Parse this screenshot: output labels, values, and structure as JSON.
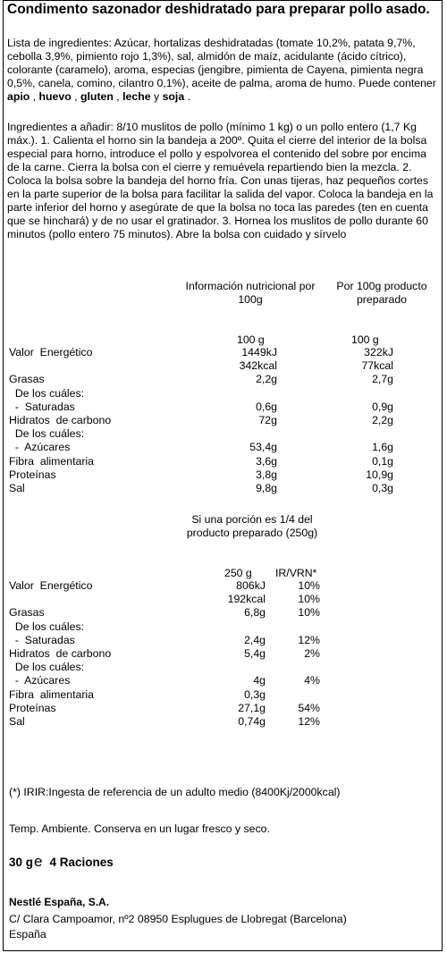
{
  "title": "Condimento sazonador deshidratado para preparar pollo asado.",
  "ingredients": {
    "text": "Lista de ingredientes: Azúcar, hortalizas deshidratadas (tomate 10,2%, patata 9,7%, cebolla 3,9%, pimiento rojo 1,3%), sal, almidón de maíz, acidulante (ácido cítrico), colorante (caramelo), aroma, especias (jengibre, pimienta de Cayena, pimienta negra 0,5%, canela, comino, cilantro 0,1%), aceite de palma, aroma de humo. Puede contener ",
    "allergens": [
      "apio",
      "huevo",
      "gluten",
      "leche",
      "soja"
    ],
    "sep1": " , ",
    "sep2": " , ",
    "sep3": " , ",
    "sep4": " y ",
    "end": " ."
  },
  "instructions": "Ingredientes a añadir: 8/10 muslitos de pollo (mínimo 1 kg) o un pollo entero (1,7 Kg máx.). 1. Calienta el horno sin la bandeja a 200º. Quita el cierre del interior de la bolsa especial para horno, introduce el pollo y espolvorea el contenido del sobre por encima de la carne. Cierra la bolsa con el cierre y remuévela repartiendo bien la mezcla. 2. Coloca la bolsa sobre la bandeja del horno fría. Con unas tijeras, haz pequeños cortes en la parte superior de la bolsa para facilitar la salida del vapor. Coloca la bandeja en la parte inferior del horno y asegúrate de que la bolsa no toca las paredes (ten en cuenta que se hinchará) y de no usar el gratinador. 3. Hornea los muslitos de pollo durante 60 minutos (pollo entero 75 minutos). Abre la bolsa con cuidado y sírvelo",
  "table1": {
    "header_per100": "Información nutricional por 100g",
    "header_prepared": "Por 100g producto preparado",
    "unit_per100": "100 g",
    "unit_prepared": "100 g",
    "rows": [
      {
        "label": "Valor  Energético",
        "a": "1449kJ",
        "b": "322kJ"
      },
      {
        "label": "",
        "a": "342kcal",
        "b": "77kcal"
      },
      {
        "label": "Grasas",
        "a": "2,2g",
        "b": "2,7g"
      },
      {
        "label": "  De los cuáles:",
        "a": "",
        "b": ""
      },
      {
        "label": "  -  Saturadas",
        "a": "0,6g",
        "b": "0,9g"
      },
      {
        "label": "Hidratos  de carbono",
        "a": "72g",
        "b": "2,2g"
      },
      {
        "label": "  De los cuáles:",
        "a": "",
        "b": ""
      },
      {
        "label": "  -  Azúcares",
        "a": "53,4g",
        "b": "1,6g"
      },
      {
        "label": "Fibra  alimentaria",
        "a": "3,6g",
        "b": "0,1g"
      },
      {
        "label": "Proteínas",
        "a": "3,8g",
        "b": "10,9g"
      },
      {
        "label": "Sal",
        "a": "9,8g",
        "b": "0,3g"
      }
    ]
  },
  "table2": {
    "header": "Si una porción es 1/4 del producto preparado (250g)",
    "unit_portion": "250 g",
    "unit_ir": "IR/VRN*",
    "rows": [
      {
        "label": "Valor  Energético",
        "a": "806kJ",
        "b": "10%"
      },
      {
        "label": "",
        "a": "192kcal",
        "b": "10%"
      },
      {
        "label": "Grasas",
        "a": "6,8g",
        "b": "10%"
      },
      {
        "label": "  De los cuáles:",
        "a": "",
        "b": ""
      },
      {
        "label": "  -  Saturadas",
        "a": "2,4g",
        "b": "12%"
      },
      {
        "label": "Hidratos  de carbono",
        "a": "5,4g",
        "b": "2%"
      },
      {
        "label": "  De los cuáles:",
        "a": "",
        "b": ""
      },
      {
        "label": "  -  Azúcares",
        "a": "4g",
        "b": "4%"
      },
      {
        "label": "Fibra  alimentaria",
        "a": "0,3g",
        "b": ""
      },
      {
        "label": "Proteínas",
        "a": "27,1g",
        "b": "54%"
      },
      {
        "label": "Sal",
        "a": "0,74g",
        "b": "12%"
      }
    ]
  },
  "footnote": "(*) IRIR:Ingesta de referencia de un adulto medio (8400Kj/2000kcal)",
  "storage": "Temp. Ambiente. Conserva en un lugar fresco y seco.",
  "net_weight": "30 g",
  "estimated_mark": "e",
  "servings": "4 Raciones",
  "company": {
    "name": "Nestlé España, S.A.",
    "address": "C/ Clara Campoamor,  nº2 08950 Esplugues de Llobregat (Barcelona)",
    "country": "España"
  }
}
